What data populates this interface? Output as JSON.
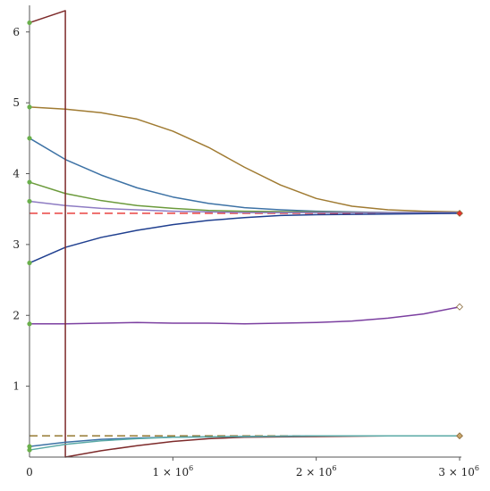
{
  "chart_data": {
    "type": "line",
    "title": "",
    "xlabel": "",
    "ylabel": "",
    "xlim": [
      0,
      3000000
    ],
    "ylim": [
      0,
      6.35
    ],
    "grid": false,
    "x_ticks": [
      {
        "value": 0,
        "mantissa": "0",
        "exp": ""
      },
      {
        "value": 1000000,
        "mantissa": "1 × 10",
        "exp": "6"
      },
      {
        "value": 2000000,
        "mantissa": "2 × 10",
        "exp": "6"
      },
      {
        "value": 3000000,
        "mantissa": "3 × 10",
        "exp": "6"
      }
    ],
    "y_ticks": [
      {
        "value": 1,
        "label": "1"
      },
      {
        "value": 2,
        "label": "2"
      },
      {
        "value": 3,
        "label": "3"
      },
      {
        "value": 4,
        "label": "4"
      },
      {
        "value": 5,
        "label": "5"
      },
      {
        "value": 6,
        "label": "6"
      }
    ],
    "reference_lines": [
      {
        "y": 3.44,
        "color": "#e8312f",
        "style": "dashed"
      },
      {
        "y": 0.3,
        "color": "#8c6d1f",
        "style": "dashed"
      }
    ],
    "series": [
      {
        "color": "#a07b32",
        "start_marker": "#6ab04c",
        "end_marker": "",
        "x": [
          0,
          250000,
          500000,
          750000,
          1000000,
          1250000,
          1500000,
          1750000,
          2000000,
          2250000,
          2500000,
          2750000,
          3000000
        ],
        "y": [
          4.94,
          4.91,
          4.86,
          4.77,
          4.6,
          4.37,
          4.09,
          3.84,
          3.65,
          3.54,
          3.49,
          3.47,
          3.46
        ]
      },
      {
        "color": "#3d72a5",
        "start_marker": "#6ab04c",
        "end_marker": "",
        "x": [
          0,
          250000,
          500000,
          750000,
          1000000,
          1250000,
          1500000,
          1750000,
          2000000,
          2500000,
          3000000
        ],
        "y": [
          4.5,
          4.2,
          3.98,
          3.8,
          3.67,
          3.58,
          3.52,
          3.49,
          3.47,
          3.45,
          3.45
        ]
      },
      {
        "color": "#6b9a3b",
        "start_marker": "#6ab04c",
        "end_marker": "",
        "x": [
          0,
          250000,
          500000,
          750000,
          1000000,
          1250000,
          1500000,
          2000000,
          2500000,
          3000000
        ],
        "y": [
          3.88,
          3.72,
          3.62,
          3.55,
          3.51,
          3.48,
          3.47,
          3.46,
          3.45,
          3.45
        ]
      },
      {
        "color": "#8e7cc3",
        "start_marker": "#6ab04c",
        "end_marker": "",
        "x": [
          0,
          250000,
          500000,
          1000000,
          1500000,
          2000000,
          2500000,
          3000000
        ],
        "y": [
          3.61,
          3.55,
          3.51,
          3.47,
          3.45,
          3.45,
          3.45,
          3.45
        ]
      },
      {
        "color": "#1f3f8f",
        "start_marker": "#6ab04c",
        "end_marker": "#e8312f",
        "x": [
          0,
          250000,
          500000,
          750000,
          1000000,
          1250000,
          1500000,
          1750000,
          2000000,
          2500000,
          3000000
        ],
        "y": [
          2.74,
          2.96,
          3.1,
          3.2,
          3.28,
          3.34,
          3.38,
          3.41,
          3.42,
          3.43,
          3.44
        ]
      },
      {
        "color": "#7b3fa0",
        "start_marker": "#6ab04c",
        "end_marker": "#ffffff",
        "x": [
          0,
          250000,
          500000,
          750000,
          1000000,
          1250000,
          1500000,
          1750000,
          2000000,
          2250000,
          2500000,
          2750000,
          3000000
        ],
        "y": [
          1.88,
          1.88,
          1.89,
          1.9,
          1.89,
          1.89,
          1.88,
          1.89,
          1.9,
          1.92,
          1.96,
          2.02,
          2.12
        ]
      },
      {
        "color": "#7d2a2a",
        "start_marker": "#6ab04c",
        "end_marker": "",
        "x": [
          0,
          250000,
          250000,
          250001,
          500000,
          750000,
          1000000,
          1250000,
          1500000,
          2000000,
          2500000,
          3000000
        ],
        "y": [
          6.13,
          6.3,
          6.3,
          0.0,
          0.09,
          0.16,
          0.22,
          0.26,
          0.28,
          0.29,
          0.3,
          0.3
        ]
      },
      {
        "color": "#3d72a5",
        "start_marker": "#6ab04c",
        "end_marker": "",
        "x": [
          0,
          250000,
          500000,
          750000,
          1000000,
          1500000,
          2000000,
          2500000,
          3000000
        ],
        "y": [
          0.15,
          0.21,
          0.25,
          0.27,
          0.28,
          0.29,
          0.3,
          0.3,
          0.3
        ]
      },
      {
        "color": "#5aa9a6",
        "start_marker": "#6ab04c",
        "end_marker": "#c9a66b",
        "x": [
          0,
          250000,
          500000,
          750000,
          1000000,
          1500000,
          2000000,
          2500000,
          3000000
        ],
        "y": [
          0.1,
          0.18,
          0.23,
          0.26,
          0.28,
          0.29,
          0.3,
          0.3,
          0.3
        ]
      }
    ]
  }
}
